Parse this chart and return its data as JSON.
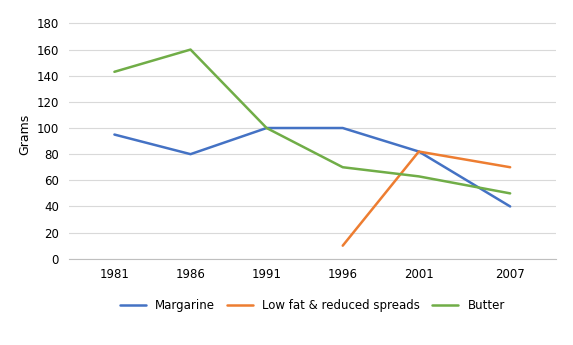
{
  "years": [
    1981,
    1986,
    1991,
    1996,
    2001,
    2007
  ],
  "margarine": [
    95,
    80,
    100,
    100,
    82,
    40
  ],
  "low_fat_years": [
    1996,
    2001,
    2007
  ],
  "low_fat": [
    10,
    82,
    70
  ],
  "butter": [
    143,
    160,
    100,
    70,
    63,
    50
  ],
  "ylabel": "Grams",
  "ylim": [
    0,
    190
  ],
  "yticks": [
    0,
    20,
    40,
    60,
    80,
    100,
    120,
    140,
    160,
    180
  ],
  "xlim": [
    1978,
    2010
  ],
  "legend_labels": [
    "Margarine",
    "Low fat & reduced spreads",
    "Butter"
  ],
  "margarine_color": "#4472C4",
  "low_fat_color": "#ED7D31",
  "butter_color": "#70AD47",
  "line_width": 1.8,
  "background_color": "#FFFFFF",
  "grid_color": "#D9D9D9"
}
